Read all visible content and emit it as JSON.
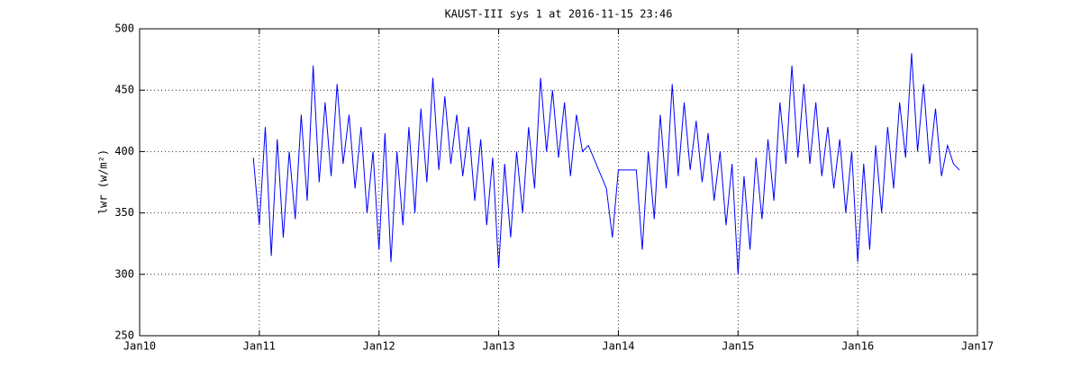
{
  "chart_data": {
    "type": "line",
    "title": "KAUST-III sys 1 at 2016-11-15 23:46",
    "y_label": "lwr (w/m²)",
    "color": "#0000ff",
    "grid": true,
    "xlim": [
      2010,
      2017
    ],
    "xticks": [
      {
        "value": 2010,
        "label": "Jan10"
      },
      {
        "value": 2011,
        "label": "Jan11"
      },
      {
        "value": 2012,
        "label": "Jan12"
      },
      {
        "value": 2013,
        "label": "Jan13"
      },
      {
        "value": 2014,
        "label": "Jan14"
      },
      {
        "value": 2015,
        "label": "Jan15"
      },
      {
        "value": 2016,
        "label": "Jan16"
      },
      {
        "value": 2017,
        "label": "Jan17"
      }
    ],
    "ylim": [
      250,
      500
    ],
    "yticks": [
      250,
      300,
      350,
      400,
      450,
      500
    ],
    "x": [
      2010.95,
      2011.0,
      2011.05,
      2011.1,
      2011.15,
      2011.2,
      2011.25,
      2011.3,
      2011.35,
      2011.4,
      2011.45,
      2011.5,
      2011.55,
      2011.6,
      2011.65,
      2011.7,
      2011.75,
      2011.8,
      2011.85,
      2011.9,
      2011.95,
      2012.0,
      2012.05,
      2012.1,
      2012.15,
      2012.2,
      2012.25,
      2012.3,
      2012.35,
      2012.4,
      2012.45,
      2012.5,
      2012.55,
      2012.6,
      2012.65,
      2012.7,
      2012.75,
      2012.8,
      2012.85,
      2012.9,
      2012.95,
      2013.0,
      2013.05,
      2013.1,
      2013.15,
      2013.2,
      2013.25,
      2013.3,
      2013.35,
      2013.4,
      2013.45,
      2013.5,
      2013.55,
      2013.6,
      2013.65,
      2013.7,
      2013.75,
      2013.9,
      2013.95,
      2014.0,
      2014.05,
      2014.1,
      2014.15,
      2014.2,
      2014.25,
      2014.3,
      2014.35,
      2014.4,
      2014.45,
      2014.5,
      2014.55,
      2014.6,
      2014.65,
      2014.7,
      2014.75,
      2014.8,
      2014.85,
      2014.9,
      2014.95,
      2015.0,
      2015.05,
      2015.1,
      2015.15,
      2015.2,
      2015.25,
      2015.3,
      2015.35,
      2015.4,
      2015.45,
      2015.5,
      2015.55,
      2015.6,
      2015.65,
      2015.7,
      2015.75,
      2015.8,
      2015.85,
      2015.9,
      2015.95,
      2016.0,
      2016.05,
      2016.1,
      2016.15,
      2016.2,
      2016.25,
      2016.3,
      2016.35,
      2016.4,
      2016.45,
      2016.5,
      2016.55,
      2016.6,
      2016.65,
      2016.7,
      2016.75,
      2016.8,
      2016.85
    ],
    "values": [
      395,
      340,
      420,
      315,
      410,
      330,
      400,
      345,
      430,
      360,
      470,
      375,
      440,
      380,
      455,
      390,
      430,
      370,
      420,
      350,
      400,
      320,
      415,
      310,
      400,
      340,
      420,
      350,
      435,
      375,
      460,
      385,
      445,
      390,
      430,
      380,
      420,
      360,
      410,
      340,
      395,
      305,
      390,
      330,
      400,
      350,
      420,
      370,
      460,
      400,
      450,
      395,
      440,
      380,
      430,
      400,
      405,
      370,
      330,
      385,
      385,
      385,
      385,
      320,
      400,
      345,
      430,
      370,
      455,
      380,
      440,
      385,
      425,
      375,
      415,
      360,
      400,
      340,
      390,
      300,
      380,
      320,
      395,
      345,
      410,
      360,
      440,
      390,
      470,
      395,
      455,
      390,
      440,
      380,
      420,
      370,
      410,
      350,
      400,
      310,
      390,
      320,
      405,
      350,
      420,
      370,
      440,
      395,
      480,
      400,
      455,
      390,
      435,
      380,
      405,
      390,
      385
    ]
  }
}
